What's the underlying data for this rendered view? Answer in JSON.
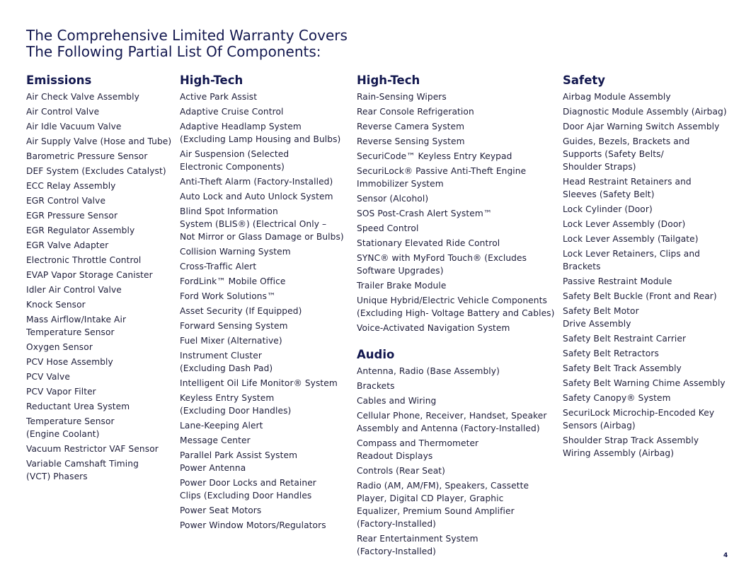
{
  "title": {
    "line1": "The Comprehensive Limited Warranty Covers",
    "line2": "The Following Partial List Of Components:"
  },
  "columns": [
    {
      "sections": [
        {
          "heading": "Emissions",
          "items": [
            "Air Check Valve Assembly",
            "Air Control Valve",
            "Air Idle Vacuum Valve",
            "Air Supply Valve (Hose and Tube)",
            "Barometric Pressure Sensor",
            "DEF System (Excludes Catalyst)",
            "ECC Relay Assembly",
            "EGR Control Valve",
            "EGR Pressure Sensor",
            "EGR Regulator Assembly",
            "EGR Valve Adapter",
            "Electronic Throttle Control",
            "EVAP Vapor Storage Canister",
            "Idler Air Control Valve",
            "Knock Sensor",
            "Mass Airflow/Intake Air\nTemperature Sensor",
            "Oxygen Sensor",
            "PCV Hose Assembly",
            "PCV Valve",
            "PCV Vapor Filter",
            "Reductant Urea System",
            "Temperature Sensor\n(Engine Coolant)",
            "Vacuum Restrictor VAF Sensor",
            "Variable Camshaft Timing\n(VCT) Phasers"
          ]
        }
      ]
    },
    {
      "sections": [
        {
          "heading": "High-Tech",
          "items": [
            "Active Park Assist",
            "Adaptive Cruise Control",
            "Adaptive Headlamp System\n(Excluding Lamp Housing and Bulbs)",
            "Air Suspension (Selected\nElectronic Components)",
            "Anti-Theft Alarm (Factory-Installed)",
            "Auto Lock and Auto Unlock System",
            "Blind Spot Information\nSystem (BLIS®) (Electrical Only –\nNot Mirror or Glass Damage or Bulbs)",
            "Collision Warning System",
            "Cross-Traffic Alert",
            "FordLink™ Mobile Office",
            "Ford Work Solutions™",
            "Asset Security (If Equipped)",
            "Forward Sensing System",
            "Fuel Mixer (Alternative)",
            "Instrument Cluster\n(Excluding Dash Pad)",
            "Intelligent Oil Life Monitor® System",
            "Keyless Entry System\n(Excluding Door Handles)",
            "Lane-Keeping Alert",
            "Message Center",
            "Parallel Park Assist System\nPower Antenna",
            "Power Door Locks and Retainer\nClips (Excluding Door Handles",
            "Power Seat Motors",
            "Power Window Motors/Regulators"
          ]
        }
      ]
    },
    {
      "sections": [
        {
          "heading": "High-Tech",
          "items": [
            "Rain-Sensing Wipers",
            "Rear Console Refrigeration",
            "Reverse Camera System",
            "Reverse Sensing System",
            "SecuriCode™ Keyless Entry Keypad",
            "SecuriLock® Passive Anti-Theft Engine\nImmobilizer System",
            "Sensor (Alcohol)",
            "SOS Post-Crash Alert System™",
            "Speed Control",
            "Stationary Elevated Ride Control",
            "SYNC® with MyFord Touch® (Excludes\nSoftware Upgrades)",
            "Trailer Brake Module",
            "Unique Hybrid/Electric Vehicle Components\n(Excluding High- Voltage Battery and Cables)",
            "Voice-Activated Navigation System"
          ]
        },
        {
          "heading": "Audio",
          "items": [
            "Antenna, Radio (Base Assembly)",
            "Brackets",
            "Cables and Wiring",
            "Cellular Phone, Receiver, Handset, Speaker\nAssembly and Antenna (Factory-Installed)",
            "Compass and Thermometer\nReadout Displays",
            "Controls (Rear Seat)",
            "Radio (AM, AM/FM), Speakers, Cassette\nPlayer, Digital CD Player, Graphic\nEqualizer, Premium Sound Amplifier\n(Factory-Installed)",
            "Rear Entertainment System\n(Factory-Installed)"
          ]
        }
      ]
    },
    {
      "sections": [
        {
          "heading": "Safety",
          "items": [
            "Airbag Module Assembly",
            "Diagnostic Module Assembly (Airbag)",
            "Door Ajar Warning Switch Assembly",
            "Guides, Bezels, Brackets and\nSupports (Safety Belts/\nShoulder Straps)",
            "Head Restraint Retainers and\nSleeves (Safety Belt)",
            "Lock Cylinder (Door)",
            "Lock Lever Assembly (Door)",
            "Lock Lever Assembly (Tailgate)",
            "Lock Lever Retainers, Clips and\nBrackets",
            "Passive Restraint Module",
            "Safety Belt Buckle (Front and Rear)",
            "Safety Belt Motor\nDrive Assembly",
            "Safety Belt Restraint Carrier",
            "Safety Belt Retractors",
            "Safety Belt Track Assembly",
            "Safety Belt Warning Chime Assembly",
            "Safety Canopy® System",
            "SecuriLock Microchip-Encoded Key\nSensors (Airbag)",
            "Shoulder Strap Track Assembly\nWiring Assembly (Airbag)"
          ]
        }
      ]
    }
  ],
  "page_number": "4"
}
